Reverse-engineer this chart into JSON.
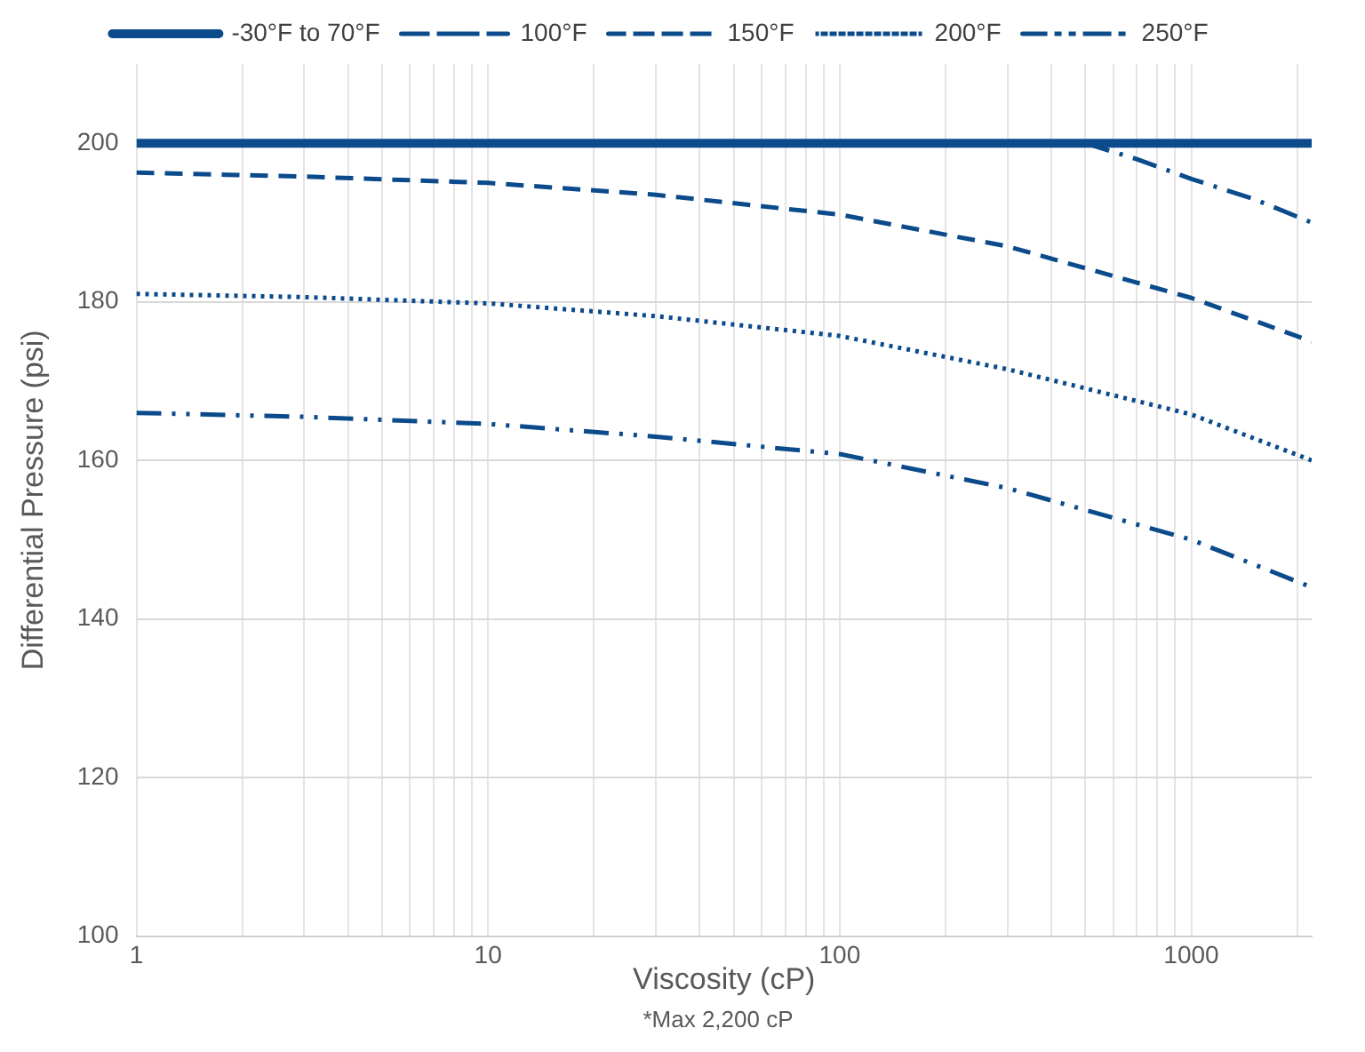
{
  "chart_data": {
    "type": "line",
    "xlabel": "Viscosity (cP)",
    "ylabel": "Differential Pressure (psi)",
    "annotations": [
      "*Max 2,200 cP"
    ],
    "log": "x",
    "grid": true,
    "legend": "top",
    "marker": "none",
    "xlim": [
      1,
      2200
    ],
    "ylim": [
      100,
      210
    ],
    "yticks": [
      100,
      120,
      140,
      160,
      180,
      200
    ],
    "xticks": [
      1,
      {
        "value": 2,
        "label": null
      },
      {
        "value": 3,
        "label": null
      },
      {
        "value": 4,
        "label": null
      },
      {
        "value": 5,
        "label": null
      },
      {
        "value": 6,
        "label": null
      },
      {
        "value": 7,
        "label": null
      },
      {
        "value": 8,
        "label": null
      },
      {
        "value": 9,
        "label": null
      },
      10,
      {
        "value": 20,
        "label": null
      },
      {
        "value": 30,
        "label": null
      },
      {
        "value": 40,
        "label": null
      },
      {
        "value": 50,
        "label": null
      },
      {
        "value": 60,
        "label": null
      },
      {
        "value": 70,
        "label": null
      },
      {
        "value": 80,
        "label": null
      },
      {
        "value": 90,
        "label": null
      },
      100,
      {
        "value": 200,
        "label": null
      },
      {
        "value": 300,
        "label": null
      },
      {
        "value": 400,
        "label": null
      },
      {
        "value": 500,
        "label": null
      },
      {
        "value": 600,
        "label": null
      },
      {
        "value": 700,
        "label": null
      },
      {
        "value": 800,
        "label": null
      },
      {
        "value": 900,
        "label": null
      },
      1000,
      {
        "value": 2000,
        "label": null
      }
    ],
    "series": [
      {
        "name": "-30°F to 70°F",
        "color": "#0b4a8b",
        "line_style": "solid",
        "x": [
          1,
          2200
        ],
        "values": [
          200,
          200
        ]
      },
      {
        "name": "100°F",
        "color": "#0b4a8b",
        "line_style": "dashdot",
        "x": [
          500,
          700,
          1000,
          1500,
          2200
        ],
        "values": [
          200,
          198,
          195.5,
          193,
          190
        ]
      },
      {
        "name": "150°F",
        "color": "#0b4a8b",
        "line_style": "dashed",
        "x": [
          1,
          3,
          10,
          30,
          100,
          300,
          1000,
          2200
        ],
        "values": [
          196.3,
          195.8,
          195,
          193.5,
          191,
          187,
          180.5,
          175
        ]
      },
      {
        "name": "200°F",
        "color": "#0b4a8b",
        "line_style": "dotted",
        "x": [
          1,
          3,
          10,
          30,
          100,
          300,
          1000,
          2200
        ],
        "values": [
          181,
          180.6,
          179.8,
          178.2,
          175.7,
          171.5,
          165.8,
          160
        ]
      },
      {
        "name": "250°F",
        "color": "#0b4a8b",
        "line_style": "dashdotdot",
        "x": [
          1,
          3,
          10,
          30,
          100,
          300,
          1000,
          2200
        ],
        "values": [
          166,
          165.5,
          164.6,
          163,
          160.8,
          156.5,
          150,
          144
        ]
      }
    ]
  }
}
